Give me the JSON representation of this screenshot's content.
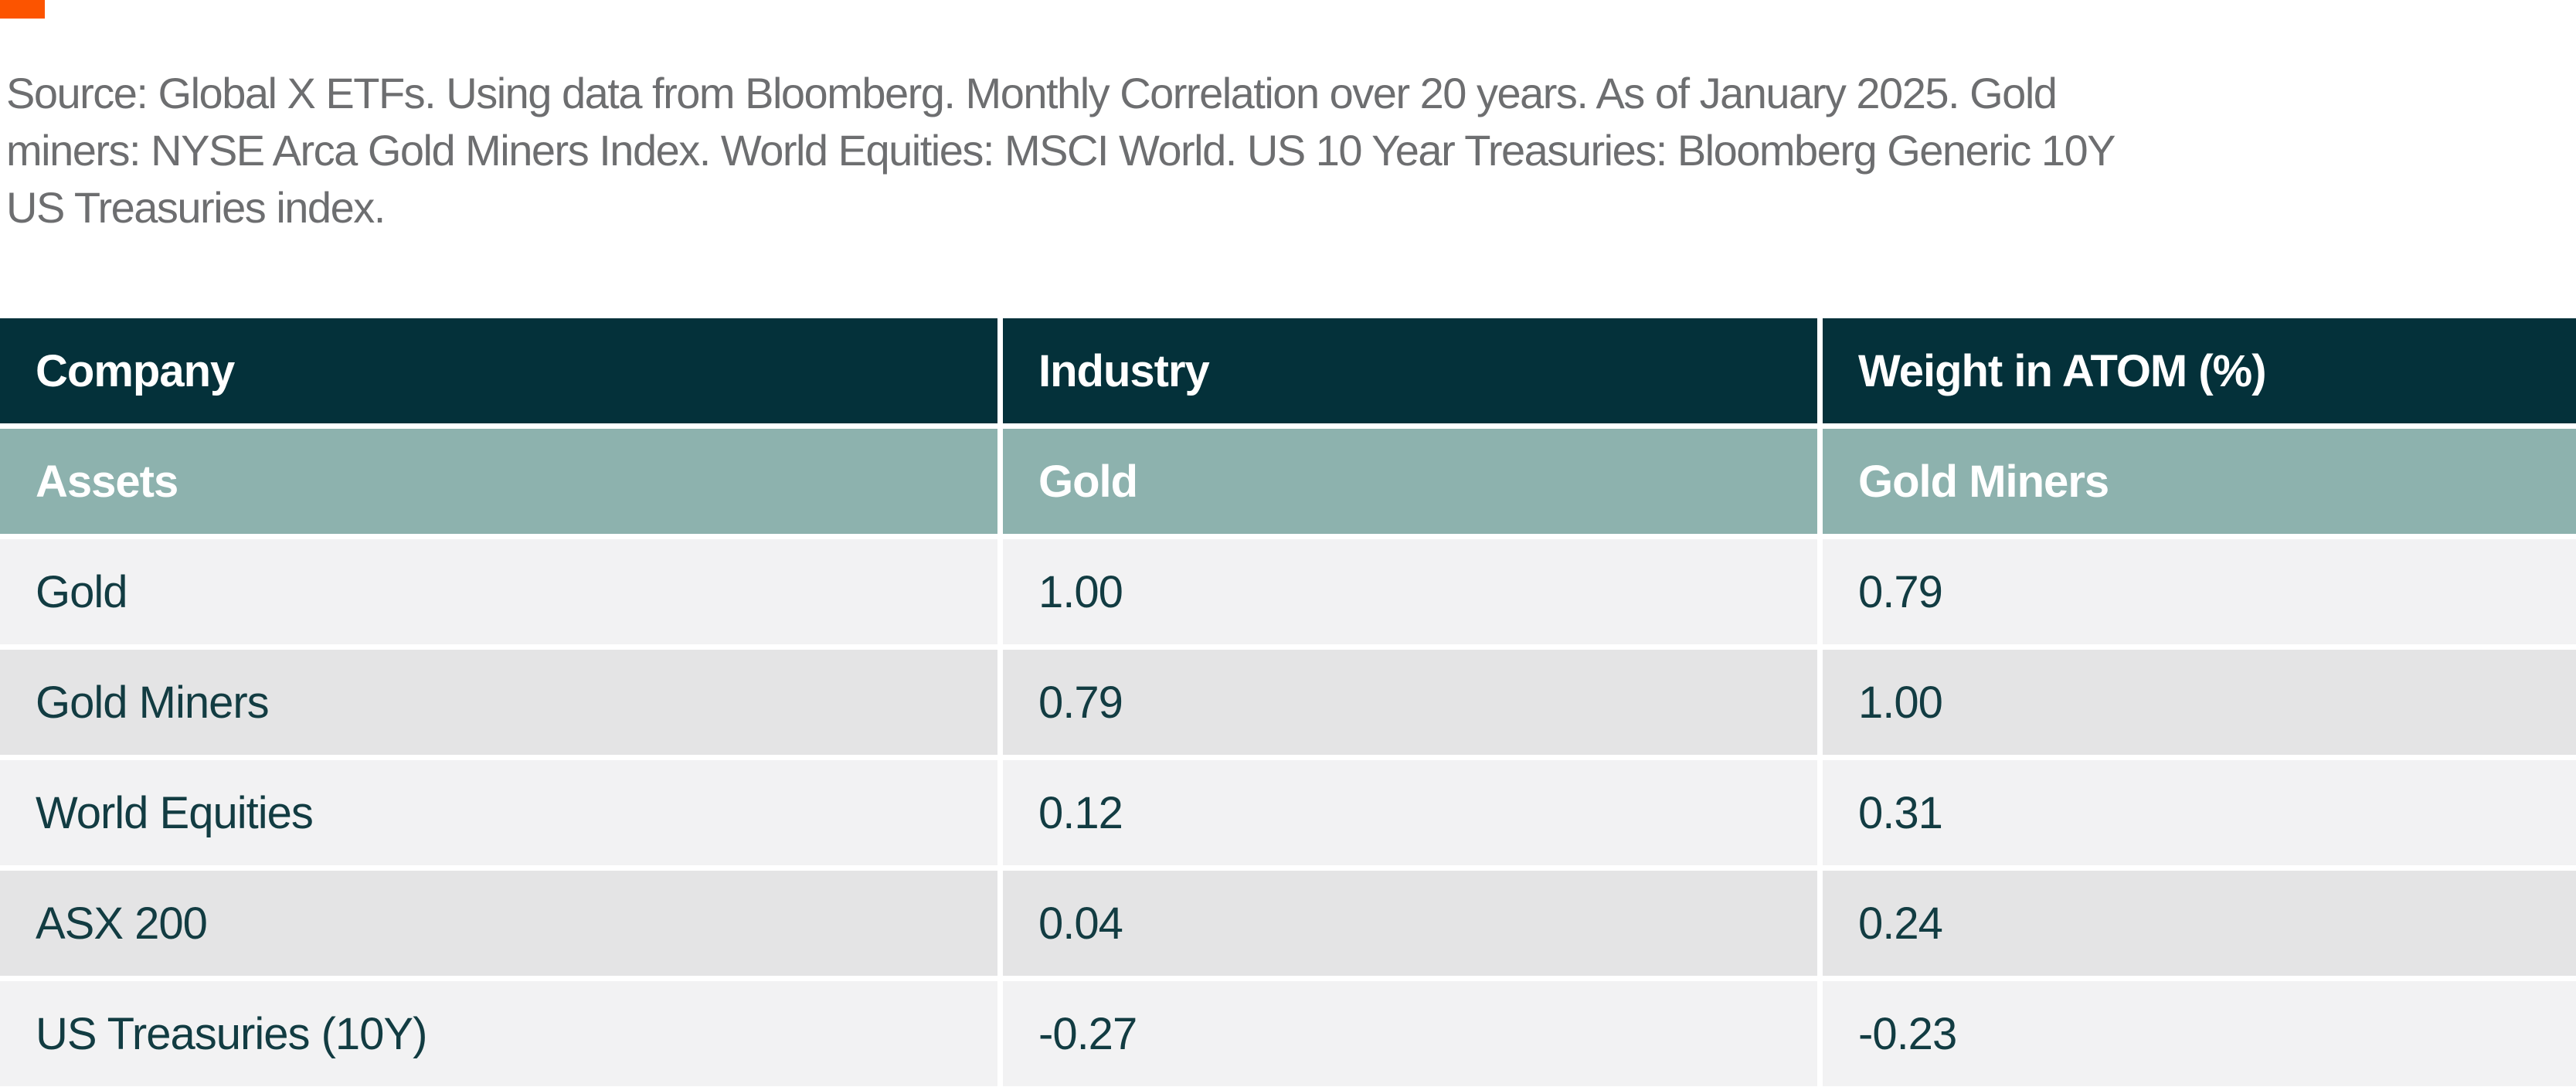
{
  "brand": {
    "accent_color": "#FC5400"
  },
  "source_note": {
    "color": "#6D6E70",
    "lines": [
      "Source: Global X ETFs. Using data from Bloomberg. Monthly Correlation over 20 years. As of January 2025. Gold",
      "miners: NYSE Arca Gold Miners Index. World Equities: MSCI World. US 10 Year Treasuries: Bloomberg Generic 10Y",
      "US Treasuries index."
    ]
  },
  "table": {
    "colors": {
      "header_bg": "#04313A",
      "subheader_bg": "#8DB2AE",
      "row_light_bg": "#F2F2F3",
      "row_dark_bg": "#E4E4E5",
      "header_text": "#FFFFFF",
      "body_text": "#123C42"
    },
    "header": {
      "company": "Company",
      "industry": "Industry",
      "weight": "Weight in ATOM (%)"
    },
    "subheader": {
      "company": "Assets",
      "industry": "Gold",
      "weight": "Gold Miners"
    },
    "rows": [
      {
        "asset": "Gold",
        "gold": "1.00",
        "gold_miners": "0.79"
      },
      {
        "asset": "Gold Miners",
        "gold": "0.79",
        "gold_miners": "1.00"
      },
      {
        "asset": "World Equities",
        "gold": "0.12",
        "gold_miners": "0.31"
      },
      {
        "asset": "ASX 200",
        "gold": "0.04",
        "gold_miners": "0.24"
      },
      {
        "asset": "US Treasuries (10Y)",
        "gold": "-0.27",
        "gold_miners": "-0.23"
      }
    ]
  },
  "chart_data": {
    "type": "table",
    "title": "Monthly correlation over 20 years (as of January 2025)",
    "columns": [
      "Company",
      "Industry",
      "Weight in ATOM (%)"
    ],
    "subheader": [
      "Assets",
      "Gold",
      "Gold Miners"
    ],
    "rows": [
      [
        "Gold",
        1.0,
        0.79
      ],
      [
        "Gold Miners",
        0.79,
        1.0
      ],
      [
        "World Equities",
        0.12,
        0.31
      ],
      [
        "ASX 200",
        0.04,
        0.24
      ],
      [
        "US Treasuries (10Y)",
        -0.27,
        -0.23
      ]
    ]
  }
}
